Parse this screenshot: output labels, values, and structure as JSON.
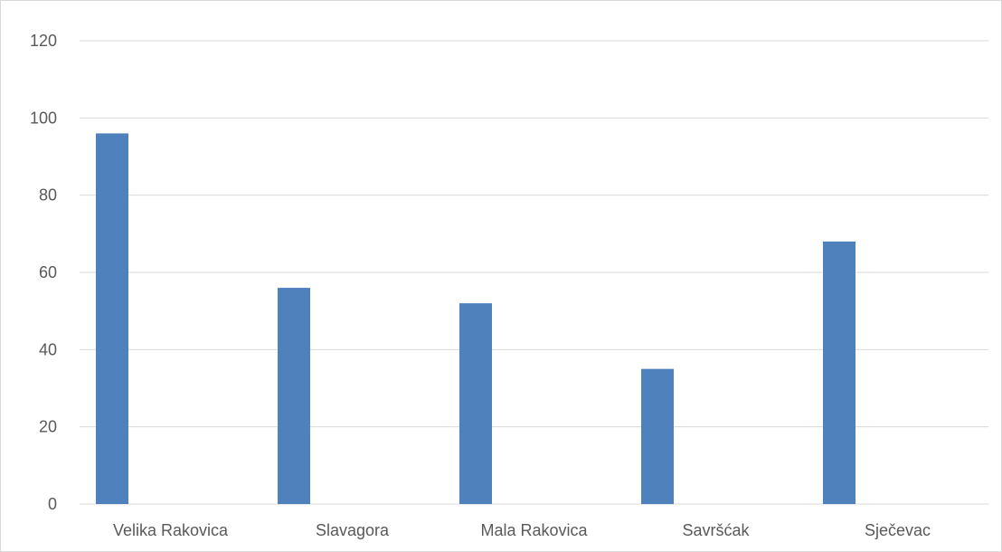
{
  "chart_data": {
    "type": "bar",
    "categories": [
      "Velika Rakovica",
      "Slavagora",
      "Mala Rakovica",
      "Savršćak",
      "Sječevac"
    ],
    "values": [
      96,
      56,
      52,
      35,
      68
    ],
    "title": "",
    "xlabel": "",
    "ylabel": "",
    "ylim": [
      0,
      120
    ],
    "yticks": [
      "0",
      "20",
      "40",
      "60",
      "80",
      "100",
      "120"
    ],
    "grid": true,
    "legend": "none",
    "colors": {
      "bar": "#4f81bd",
      "grid": "#d9d9d9",
      "text": "#595959"
    }
  }
}
